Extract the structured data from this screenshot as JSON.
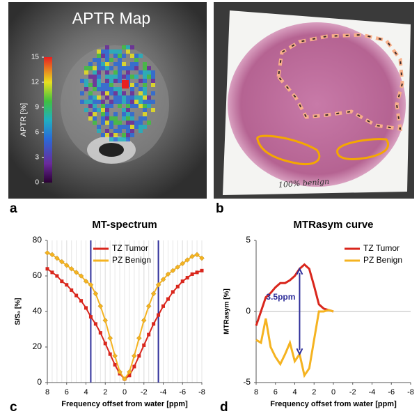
{
  "panel_labels": [
    "a",
    "b",
    "c",
    "d"
  ],
  "images": {
    "a": {
      "title": "APTR Map",
      "colorbar_label": "APTR [%]",
      "colorbar_lim": [
        0,
        15
      ],
      "colorbar_ticks": [
        0,
        3,
        6,
        9,
        12,
        15
      ]
    },
    "b": {
      "note": "100% benign"
    }
  },
  "chart_data": [
    {
      "type": "line",
      "title": "MT-spectrum",
      "x_label": "Frequency offset from water [ppm]",
      "y_label": "S/S₀ [%]",
      "x": [
        8,
        7.5,
        7,
        6.5,
        6,
        5.5,
        5,
        4.5,
        4,
        3.5,
        3,
        2.5,
        2,
        1.5,
        1,
        0.5,
        0,
        -0.5,
        -1,
        -1.5,
        -2,
        -2.5,
        -3,
        -3.5,
        -4,
        -4.5,
        -5,
        -5.5,
        -6,
        -6.5,
        -7,
        -7.5,
        -8
      ],
      "series": [
        {
          "name": "TZ Tumor",
          "color": "#d9261c",
          "marker": "square",
          "values": [
            64,
            62,
            60,
            57,
            55,
            52,
            49,
            46,
            42,
            37,
            33,
            28,
            22,
            16,
            10,
            5,
            2,
            4,
            9,
            15,
            21,
            27,
            33,
            38,
            43,
            47,
            51,
            54,
            57,
            59,
            61,
            62,
            63
          ]
        },
        {
          "name": "PZ Benign",
          "color": "#f5b320",
          "marker": "diamond",
          "values": [
            73,
            72,
            70,
            68,
            66,
            64,
            62,
            60,
            57,
            55,
            50,
            43,
            35,
            25,
            15,
            6,
            2,
            6,
            15,
            25,
            35,
            43,
            50,
            55,
            58,
            61,
            63,
            65,
            67,
            69,
            71,
            72,
            70
          ]
        }
      ],
      "vlines": [
        3.5,
        -3.5
      ],
      "vline_color": "#2e2e9a",
      "xlim": [
        8,
        -8
      ],
      "xticks": [
        8,
        6,
        4,
        2,
        0,
        -2,
        -4,
        -6,
        -8
      ],
      "ylim": [
        0,
        80
      ],
      "yticks": [
        0,
        20,
        40,
        60,
        80
      ],
      "grid": true,
      "legend": "upper center"
    },
    {
      "type": "line",
      "title": "MTRasym curve",
      "x_label": "Frequency offset from water [ppm]",
      "y_label": "MTRasym [%]",
      "x": [
        8,
        7.5,
        7,
        6.5,
        6,
        5.5,
        5,
        4.5,
        4,
        3.5,
        3,
        2.5,
        2,
        1.5,
        1,
        0.5,
        0
      ],
      "series": [
        {
          "name": "TZ Tumor",
          "color": "#d9261c",
          "values": [
            -1,
            0,
            1,
            1.3,
            1.7,
            2,
            2,
            2.2,
            2.5,
            3,
            3.3,
            3,
            1.8,
            0.5,
            0.2,
            0.1,
            0
          ]
        },
        {
          "name": "PZ Benign",
          "color": "#f5b320",
          "values": [
            -2,
            -2.2,
            -0.5,
            -2.5,
            -3.2,
            -3.7,
            -3,
            -2.2,
            -3.5,
            -3,
            -4.5,
            -4,
            -2,
            0,
            0,
            0.1,
            0
          ]
        }
      ],
      "annotation": {
        "text": "3.5ppm",
        "x": 3.5,
        "color": "#2e2e9a"
      },
      "xlim": [
        8,
        -8
      ],
      "xticks": [
        8,
        6,
        4,
        2,
        0,
        -2,
        -4,
        -6,
        -8
      ],
      "ylim": [
        -5,
        5
      ],
      "yticks": [
        -5,
        0,
        5
      ],
      "grid": false,
      "legend": "upper right"
    }
  ]
}
